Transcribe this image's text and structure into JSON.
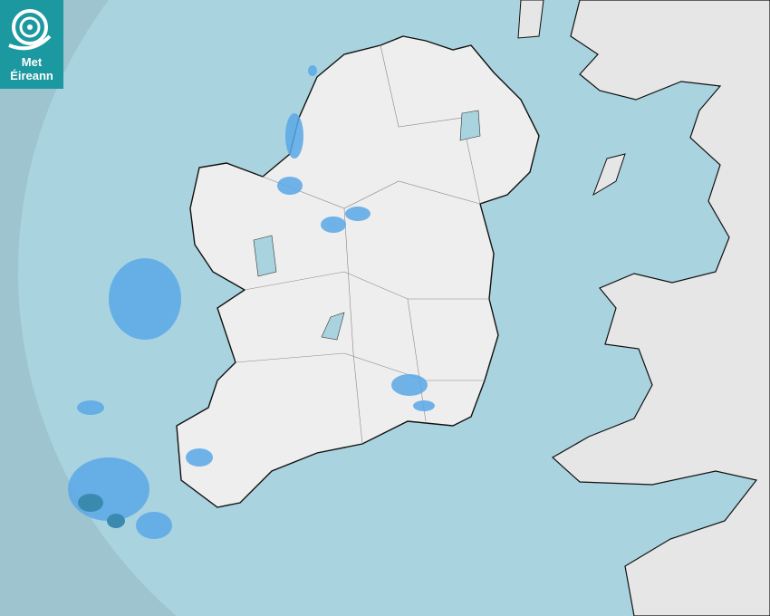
{
  "logo": {
    "line1": "Met",
    "line2": "Éireann",
    "color": "#1b98a0"
  },
  "map": {
    "sea_color": "#a9d3df",
    "outside_coverage_color": "#9ec4cf",
    "land_color": "#eeeeee",
    "rain_color": "#5aa8e8",
    "heavy_rain_color": "#3a8ab0"
  }
}
